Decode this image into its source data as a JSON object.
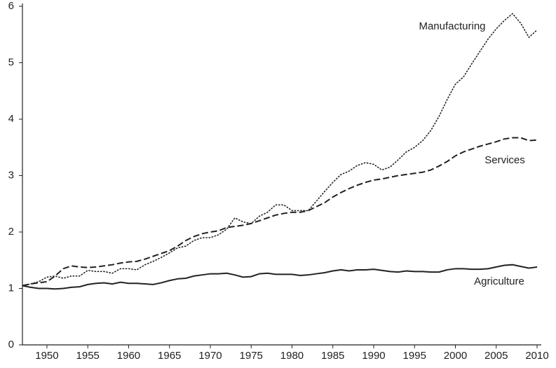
{
  "chart_data": {
    "type": "line",
    "x": [
      1947,
      1948,
      1949,
      1950,
      1951,
      1952,
      1953,
      1954,
      1955,
      1956,
      1957,
      1958,
      1959,
      1960,
      1961,
      1962,
      1963,
      1964,
      1965,
      1966,
      1967,
      1968,
      1969,
      1970,
      1971,
      1972,
      1973,
      1974,
      1975,
      1976,
      1977,
      1978,
      1979,
      1980,
      1981,
      1982,
      1983,
      1984,
      1985,
      1986,
      1987,
      1988,
      1989,
      1990,
      1991,
      1992,
      1993,
      1994,
      1995,
      1996,
      1997,
      1998,
      1999,
      2000,
      2001,
      2002,
      2003,
      2004,
      2005,
      2006,
      2007,
      2008,
      2009,
      2010
    ],
    "series": [
      {
        "name": "Manufacturing",
        "color": "#222222",
        "dash": "dotted",
        "values": [
          1.05,
          1.08,
          1.12,
          1.2,
          1.22,
          1.18,
          1.22,
          1.22,
          1.32,
          1.3,
          1.3,
          1.27,
          1.35,
          1.35,
          1.33,
          1.42,
          1.48,
          1.55,
          1.63,
          1.72,
          1.75,
          1.85,
          1.9,
          1.9,
          1.95,
          2.05,
          2.25,
          2.18,
          2.15,
          2.28,
          2.35,
          2.48,
          2.48,
          2.38,
          2.38,
          2.38,
          2.55,
          2.72,
          2.88,
          3.02,
          3.08,
          3.18,
          3.23,
          3.2,
          3.1,
          3.15,
          3.28,
          3.42,
          3.5,
          3.62,
          3.8,
          4.05,
          4.35,
          4.62,
          4.75,
          4.98,
          5.2,
          5.42,
          5.6,
          5.75,
          5.87,
          5.7,
          5.45,
          5.58
        ]
      },
      {
        "name": "Services",
        "color": "#222222",
        "dash": "dashed",
        "values": [
          1.05,
          1.08,
          1.1,
          1.12,
          1.22,
          1.35,
          1.4,
          1.38,
          1.37,
          1.38,
          1.4,
          1.42,
          1.45,
          1.47,
          1.48,
          1.52,
          1.57,
          1.62,
          1.67,
          1.75,
          1.85,
          1.92,
          1.97,
          2.0,
          2.02,
          2.08,
          2.1,
          2.12,
          2.15,
          2.2,
          2.25,
          2.3,
          2.33,
          2.35,
          2.35,
          2.38,
          2.45,
          2.52,
          2.62,
          2.7,
          2.77,
          2.83,
          2.88,
          2.92,
          2.94,
          2.97,
          3.0,
          3.02,
          3.04,
          3.06,
          3.1,
          3.17,
          3.25,
          3.35,
          3.42,
          3.47,
          3.52,
          3.56,
          3.6,
          3.65,
          3.67,
          3.67,
          3.62,
          3.63
        ]
      },
      {
        "name": "Agriculture",
        "color": "#222222",
        "dash": "solid",
        "values": [
          1.05,
          1.02,
          1.0,
          1.0,
          0.99,
          1.0,
          1.02,
          1.03,
          1.07,
          1.09,
          1.1,
          1.08,
          1.11,
          1.09,
          1.09,
          1.08,
          1.07,
          1.1,
          1.14,
          1.17,
          1.18,
          1.22,
          1.24,
          1.26,
          1.26,
          1.27,
          1.24,
          1.2,
          1.21,
          1.26,
          1.27,
          1.25,
          1.25,
          1.25,
          1.23,
          1.24,
          1.26,
          1.28,
          1.31,
          1.33,
          1.31,
          1.33,
          1.33,
          1.34,
          1.32,
          1.3,
          1.29,
          1.31,
          1.3,
          1.3,
          1.29,
          1.29,
          1.33,
          1.35,
          1.35,
          1.34,
          1.34,
          1.35,
          1.38,
          1.41,
          1.42,
          1.39,
          1.36,
          1.38
        ]
      }
    ],
    "xlim": [
      1947,
      2010
    ],
    "xticks": [
      1950,
      1955,
      1960,
      1965,
      1970,
      1975,
      1980,
      1985,
      1990,
      1995,
      2000,
      2005,
      2010
    ],
    "ylim": [
      0,
      6
    ],
    "yticks": [
      0,
      1,
      2,
      3,
      4,
      5,
      6
    ]
  }
}
